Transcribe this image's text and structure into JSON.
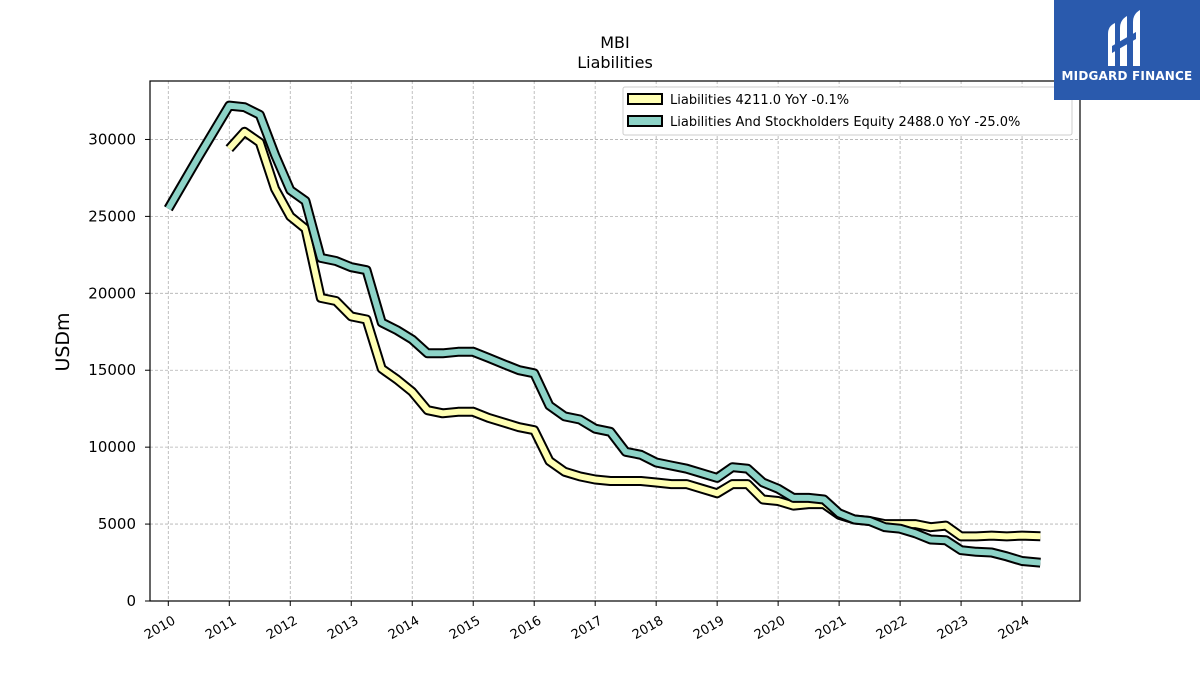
{
  "brand": {
    "name": "MIDGARD FINANCE",
    "color": "#2a5aad"
  },
  "chart_data": {
    "type": "line",
    "title": "MBI",
    "subtitle": "Liabilities",
    "ylabel": "USDm",
    "xlabel": "",
    "ylim": [
      0,
      33800
    ],
    "xlim": [
      2009.7,
      2024.95
    ],
    "yticks": [
      0,
      5000,
      10000,
      15000,
      20000,
      25000,
      30000
    ],
    "xticks": [
      "2010",
      "2011",
      "2012",
      "2013",
      "2014",
      "2015",
      "2016",
      "2017",
      "2018",
      "2019",
      "2020",
      "2021",
      "2022",
      "2023",
      "2024"
    ],
    "grid": true,
    "legend_position": "top-right",
    "series": [
      {
        "name": "Liabilities  4211.0 YoY -0.1%",
        "color": "#ffffb3",
        "points": [
          [
            2011.0,
            29400
          ],
          [
            2011.25,
            30500
          ],
          [
            2011.5,
            29800
          ],
          [
            2011.75,
            26800
          ],
          [
            2012.0,
            25000
          ],
          [
            2012.25,
            24200
          ],
          [
            2012.5,
            19700
          ],
          [
            2012.75,
            19500
          ],
          [
            2013.0,
            18500
          ],
          [
            2013.25,
            18300
          ],
          [
            2013.5,
            15100
          ],
          [
            2013.75,
            14400
          ],
          [
            2014.0,
            13600
          ],
          [
            2014.25,
            12400
          ],
          [
            2014.5,
            12200
          ],
          [
            2014.75,
            12300
          ],
          [
            2015.0,
            12300
          ],
          [
            2015.25,
            11900
          ],
          [
            2015.5,
            11600
          ],
          [
            2015.75,
            11300
          ],
          [
            2016.0,
            11100
          ],
          [
            2016.25,
            9100
          ],
          [
            2016.5,
            8400
          ],
          [
            2016.75,
            8100
          ],
          [
            2017.0,
            7900
          ],
          [
            2017.25,
            7800
          ],
          [
            2017.5,
            7800
          ],
          [
            2017.75,
            7800
          ],
          [
            2018.0,
            7700
          ],
          [
            2018.25,
            7600
          ],
          [
            2018.5,
            7600
          ],
          [
            2018.75,
            7300
          ],
          [
            2019.0,
            7000
          ],
          [
            2019.25,
            7600
          ],
          [
            2019.5,
            7600
          ],
          [
            2019.75,
            6600
          ],
          [
            2020.0,
            6500
          ],
          [
            2020.25,
            6200
          ],
          [
            2020.5,
            6300
          ],
          [
            2020.75,
            6300
          ],
          [
            2021.0,
            5600
          ],
          [
            2021.25,
            5300
          ],
          [
            2021.5,
            5200
          ],
          [
            2021.75,
            5000
          ],
          [
            2022.0,
            5000
          ],
          [
            2022.25,
            5000
          ],
          [
            2022.5,
            4800
          ],
          [
            2022.75,
            4900
          ],
          [
            2023.0,
            4200
          ],
          [
            2023.25,
            4200
          ],
          [
            2023.5,
            4250
          ],
          [
            2023.75,
            4200
          ],
          [
            2024.0,
            4250
          ],
          [
            2024.3,
            4211
          ]
        ]
      },
      {
        "name": "Liabilities And Stockholders Equity  2488.0 YoY -25.0%",
        "color": "#8dd3c7",
        "points": [
          [
            2010.0,
            25500
          ],
          [
            2010.5,
            28900
          ],
          [
            2011.0,
            32200
          ],
          [
            2011.25,
            32100
          ],
          [
            2011.5,
            31600
          ],
          [
            2011.75,
            29000
          ],
          [
            2012.0,
            26700
          ],
          [
            2012.25,
            26000
          ],
          [
            2012.5,
            22300
          ],
          [
            2012.75,
            22100
          ],
          [
            2013.0,
            21700
          ],
          [
            2013.25,
            21500
          ],
          [
            2013.5,
            18100
          ],
          [
            2013.75,
            17600
          ],
          [
            2014.0,
            17000
          ],
          [
            2014.25,
            16100
          ],
          [
            2014.5,
            16100
          ],
          [
            2014.75,
            16200
          ],
          [
            2015.0,
            16200
          ],
          [
            2015.25,
            15800
          ],
          [
            2015.5,
            15400
          ],
          [
            2015.75,
            15000
          ],
          [
            2016.0,
            14800
          ],
          [
            2016.25,
            12700
          ],
          [
            2016.5,
            12000
          ],
          [
            2016.75,
            11800
          ],
          [
            2017.0,
            11200
          ],
          [
            2017.25,
            11000
          ],
          [
            2017.5,
            9700
          ],
          [
            2017.75,
            9500
          ],
          [
            2018.0,
            9000
          ],
          [
            2018.25,
            8800
          ],
          [
            2018.5,
            8600
          ],
          [
            2018.75,
            8300
          ],
          [
            2019.0,
            8000
          ],
          [
            2019.25,
            8700
          ],
          [
            2019.5,
            8600
          ],
          [
            2019.75,
            7700
          ],
          [
            2020.0,
            7300
          ],
          [
            2020.25,
            6700
          ],
          [
            2020.5,
            6700
          ],
          [
            2020.75,
            6600
          ],
          [
            2021.0,
            5700
          ],
          [
            2021.25,
            5300
          ],
          [
            2021.5,
            5200
          ],
          [
            2021.75,
            4800
          ],
          [
            2022.0,
            4700
          ],
          [
            2022.25,
            4400
          ],
          [
            2022.5,
            4000
          ],
          [
            2022.75,
            3950
          ],
          [
            2023.0,
            3300
          ],
          [
            2023.25,
            3200
          ],
          [
            2023.5,
            3150
          ],
          [
            2023.75,
            2900
          ],
          [
            2024.0,
            2600
          ],
          [
            2024.3,
            2488
          ]
        ]
      }
    ]
  }
}
